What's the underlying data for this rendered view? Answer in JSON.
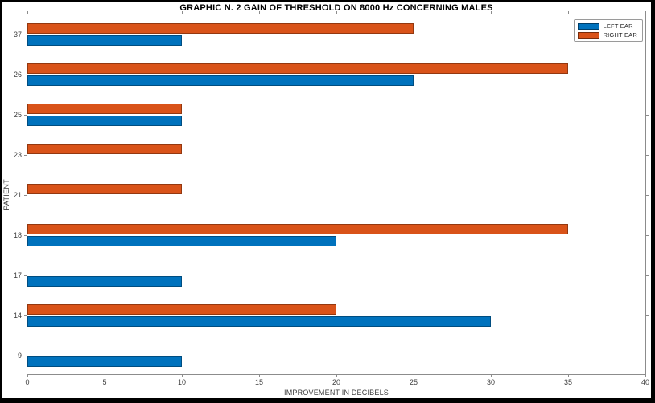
{
  "chart_data": {
    "type": "bar",
    "orientation": "horizontal",
    "title": "GRAPHIC N. 2 GAIN OF THRESHOLD ON 8000 Hz CONCERNING MALES",
    "xlabel": "IMPROVEMENT IN DECIBELS",
    "ylabel": "PATIENT",
    "categories": [
      "37",
      "26",
      "25",
      "23",
      "21",
      "18",
      "17",
      "14",
      "9"
    ],
    "series": [
      {
        "name": "LEFT EAR",
        "color": "#0072BD",
        "values": [
          10,
          25,
          10,
          0,
          0,
          20,
          10,
          30,
          10
        ]
      },
      {
        "name": "RIGHT EAR",
        "color": "#D95319",
        "values": [
          25,
          35,
          10,
          10,
          10,
          35,
          0,
          20,
          0
        ]
      }
    ],
    "xlim": [
      0,
      40
    ],
    "xticks": [
      0,
      5,
      10,
      15,
      20,
      25,
      30,
      35,
      40
    ],
    "grid": false,
    "legend_position": "top-right",
    "bar_group_note": "RIGHT EAR bar drawn above LEFT EAR bar in each patient group",
    "colors": {
      "axis_line": "#8c8c8c",
      "tick_label": "#3f3f3f",
      "title_text": "#000000",
      "plot_background": "#ffffff",
      "outer_frame": "#000000"
    }
  }
}
